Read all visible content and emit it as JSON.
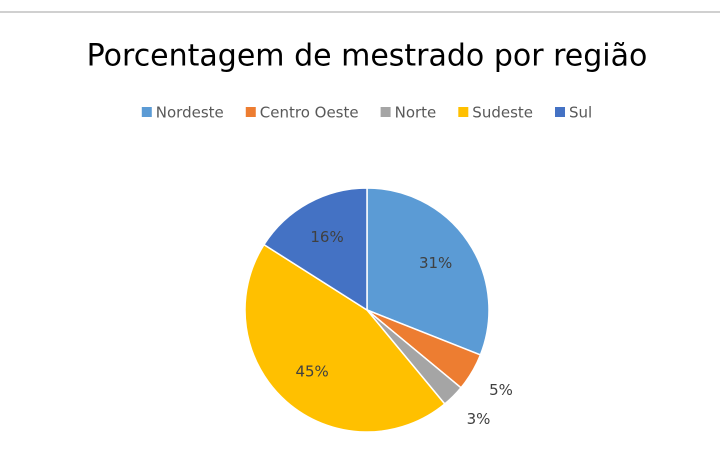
{
  "chart_data": {
    "type": "pie",
    "title": "Porcentagem de mestrado por região",
    "categories": [
      "Nordeste",
      "Centro Oeste",
      "Norte",
      "Sudeste",
      "Sul"
    ],
    "values": [
      31,
      5,
      3,
      45,
      16
    ],
    "value_labels": [
      "31%",
      "5%",
      "3%",
      "45%",
      "16%"
    ],
    "colors": [
      "#5b9bd5",
      "#ed7d31",
      "#a5a5a5",
      "#ffc000",
      "#4472c4"
    ],
    "legend": "top"
  }
}
